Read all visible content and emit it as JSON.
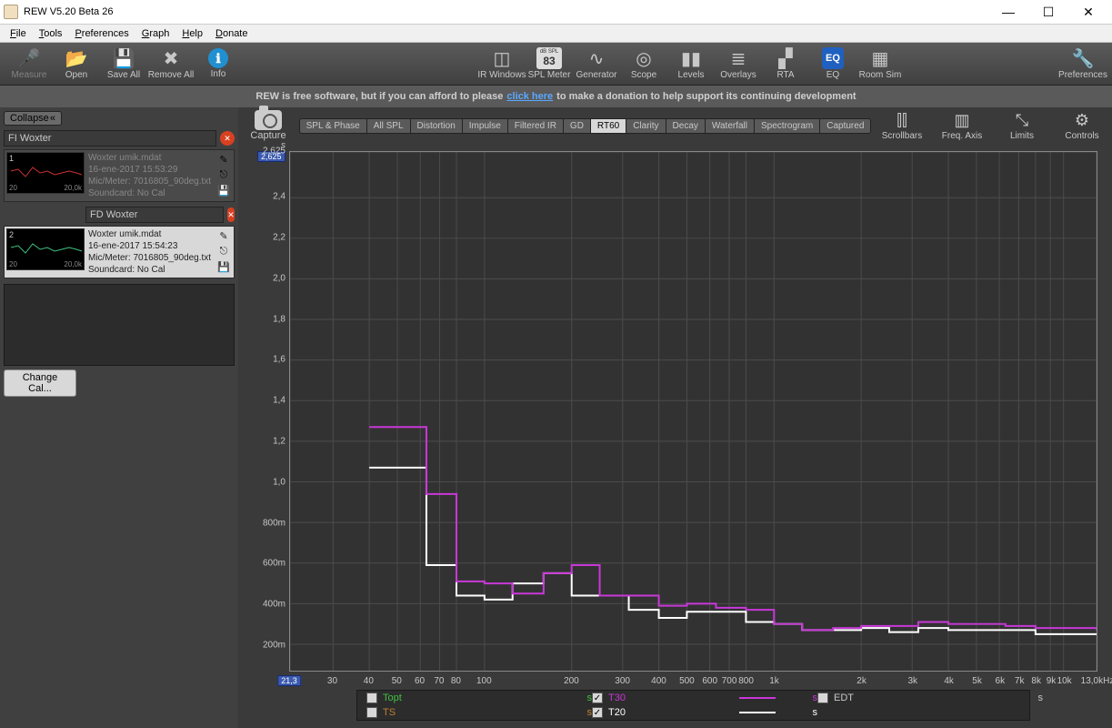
{
  "window": {
    "title": "REW V5.20 Beta 26",
    "min": "—",
    "max": "☐",
    "close": "✕"
  },
  "menu": [
    "File",
    "Tools",
    "Preferences",
    "Graph",
    "Help",
    "Donate"
  ],
  "toolbar_left": [
    {
      "id": "measure",
      "label": "Measure",
      "glyph": "🎤",
      "disabled": true
    },
    {
      "id": "open",
      "label": "Open",
      "glyph": "📂"
    },
    {
      "id": "saveall",
      "label": "Save All",
      "glyph": "💾"
    },
    {
      "id": "removeall",
      "label": "Remove All",
      "glyph": "✖"
    },
    {
      "id": "info",
      "label": "Info",
      "glyph": "ℹ"
    }
  ],
  "toolbar_right": [
    {
      "id": "irwin",
      "label": "IR Windows",
      "glyph": "◫"
    },
    {
      "id": "splmeter",
      "label": "SPL Meter",
      "glyph": "83",
      "sub": "dB SPL"
    },
    {
      "id": "generator",
      "label": "Generator",
      "glyph": "∿"
    },
    {
      "id": "scope",
      "label": "Scope",
      "glyph": "◎"
    },
    {
      "id": "levels",
      "label": "Levels",
      "glyph": "▮▮"
    },
    {
      "id": "overlays",
      "label": "Overlays",
      "glyph": "≣"
    },
    {
      "id": "rta",
      "label": "RTA",
      "glyph": "▞"
    },
    {
      "id": "eq",
      "label": "EQ",
      "glyph": "EQ"
    },
    {
      "id": "roomsim",
      "label": "Room Sim",
      "glyph": "▦"
    }
  ],
  "toolbar_far": {
    "id": "prefs",
    "label": "Preferences",
    "glyph": "🔧"
  },
  "banner": {
    "pre": "REW is free software, but if you can afford to please ",
    "link": "click here",
    "post": " to make a donation to help support its continuing development"
  },
  "sidebar": {
    "collapse": "Collapse",
    "change_cal": "Change Cal...",
    "items": [
      {
        "n": "1",
        "name": "FI Woxter",
        "file": "Woxter umik.mdat",
        "time": "16-ene-2017 15:53:29",
        "mic": "Mic/Meter: 7016805_90deg.txt",
        "sound": "Soundcard: No Cal",
        "xl": "20",
        "xr": "20,0k",
        "selected": false,
        "color": "#cc3030"
      },
      {
        "n": "2",
        "name": "FD Woxter",
        "file": "Woxter umik.mdat",
        "time": "16-ene-2017 15:54:23",
        "mic": "Mic/Meter: 7016805_90deg.txt",
        "sound": "Soundcard: No Cal",
        "xl": "20",
        "xr": "20,0k",
        "selected": true,
        "color": "#40c080"
      }
    ]
  },
  "capture": "Capture",
  "tabs": [
    "SPL & Phase",
    "All SPL",
    "Distortion",
    "Impulse",
    "Filtered IR",
    "GD",
    "RT60",
    "Clarity",
    "Decay",
    "Waterfall",
    "Spectrogram",
    "Captured"
  ],
  "tab_active": "RT60",
  "right_tools": [
    {
      "id": "scrollbars",
      "label": "Scrollbars",
      "glyph": "⫿⫿"
    },
    {
      "id": "freqaxis",
      "label": "Freq. Axis",
      "glyph": "▥"
    },
    {
      "id": "limits",
      "label": "Limits",
      "glyph": "⤡"
    },
    {
      "id": "controls",
      "label": "Controls",
      "glyph": "⚙"
    }
  ],
  "chart": {
    "bg": "#323232",
    "grid": "#4c4c4c",
    "axis": "#c8c8c8",
    "y_unit": "s",
    "y_ticks": [
      {
        "v": 2.625,
        "l": "2,625"
      },
      {
        "v": 2.4,
        "l": "2,4"
      },
      {
        "v": 2.2,
        "l": "2,2"
      },
      {
        "v": 2.0,
        "l": "2,0"
      },
      {
        "v": 1.8,
        "l": "1,8"
      },
      {
        "v": 1.6,
        "l": "1,6"
      },
      {
        "v": 1.4,
        "l": "1,4"
      },
      {
        "v": 1.2,
        "l": "1,2"
      },
      {
        "v": 1.0,
        "l": "1,0"
      },
      {
        "v": 0.8,
        "l": "800m"
      },
      {
        "v": 0.6,
        "l": "600m"
      },
      {
        "v": 0.4,
        "l": "400m"
      },
      {
        "v": 0.2,
        "l": "200m"
      }
    ],
    "x_ticks": [
      21.3,
      30,
      40,
      50,
      60,
      70,
      80,
      100,
      200,
      300,
      400,
      500,
      600,
      700,
      800,
      1000,
      2000,
      3000,
      4000,
      5000,
      6000,
      7000,
      8000,
      9000,
      10000,
      13000
    ],
    "x_labels": [
      "21,3",
      "30",
      "40",
      "50",
      "60",
      "70",
      "80",
      "100",
      "200",
      "300",
      "400",
      "500",
      "600",
      "700",
      "800",
      "1k",
      "2k",
      "3k",
      "4k",
      "5k",
      "6k",
      "7k",
      "8k",
      "9k",
      "10k",
      "13,0kHz"
    ],
    "x_unit": "Hz",
    "xmin": 21.3,
    "xmax": 13000,
    "ymin": 0.07,
    "ymax": 2.625,
    "cursor_y": "2,625",
    "cursor_x": "21,3",
    "series": {
      "T20": {
        "color": "#ffffff",
        "width": 2,
        "data": [
          [
            40,
            1.07
          ],
          [
            50,
            1.07
          ],
          [
            63,
            0.59
          ],
          [
            80,
            0.44
          ],
          [
            100,
            0.42
          ],
          [
            125,
            0.5
          ],
          [
            160,
            0.55
          ],
          [
            200,
            0.44
          ],
          [
            250,
            0.44
          ],
          [
            315,
            0.37
          ],
          [
            400,
            0.33
          ],
          [
            500,
            0.36
          ],
          [
            630,
            0.36
          ],
          [
            800,
            0.31
          ],
          [
            1000,
            0.3
          ],
          [
            1250,
            0.27
          ],
          [
            1600,
            0.27
          ],
          [
            2000,
            0.28
          ],
          [
            2500,
            0.26
          ],
          [
            3150,
            0.28
          ],
          [
            4000,
            0.27
          ],
          [
            5000,
            0.27
          ],
          [
            6300,
            0.27
          ],
          [
            8000,
            0.25
          ],
          [
            10000,
            0.25
          ],
          [
            13000,
            0.25
          ]
        ]
      },
      "T30": {
        "color": "#c838d8",
        "width": 2,
        "data": [
          [
            40,
            1.27
          ],
          [
            50,
            1.27
          ],
          [
            63,
            0.94
          ],
          [
            80,
            0.51
          ],
          [
            100,
            0.5
          ],
          [
            125,
            0.45
          ],
          [
            160,
            0.55
          ],
          [
            200,
            0.59
          ],
          [
            250,
            0.44
          ],
          [
            315,
            0.44
          ],
          [
            400,
            0.39
          ],
          [
            500,
            0.4
          ],
          [
            630,
            0.38
          ],
          [
            800,
            0.37
          ],
          [
            1000,
            0.3
          ],
          [
            1250,
            0.27
          ],
          [
            1600,
            0.28
          ],
          [
            2000,
            0.29
          ],
          [
            2500,
            0.29
          ],
          [
            3150,
            0.31
          ],
          [
            4000,
            0.3
          ],
          [
            5000,
            0.3
          ],
          [
            6300,
            0.29
          ],
          [
            8000,
            0.28
          ],
          [
            10000,
            0.28
          ],
          [
            13000,
            0.27
          ]
        ]
      }
    },
    "legend": [
      {
        "id": "topt",
        "label": "Topt",
        "color": "#40c040",
        "checked": false,
        "unit": "s"
      },
      {
        "id": "edt",
        "label": "EDT",
        "color": "#c8c8c8",
        "checked": false,
        "unit": "s"
      },
      {
        "id": "t20",
        "label": "T20",
        "color": "#ffffff",
        "checked": true,
        "unit": "s"
      },
      {
        "id": "t30",
        "label": "T30",
        "color": "#c838d8",
        "checked": true,
        "unit": "s"
      },
      {
        "id": "ts",
        "label": "TS",
        "color": "#c08030",
        "checked": false,
        "unit": "s"
      }
    ]
  }
}
